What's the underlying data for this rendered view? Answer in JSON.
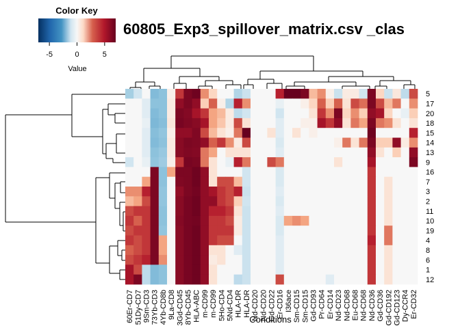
{
  "chart_data": {
    "type": "heatmap",
    "title": "60805_Exp3_spillover_matrix.csv _clas",
    "xlabel": "Conditions",
    "ylabel": "",
    "color_key": {
      "title": "Color Key",
      "label": "Value",
      "ticks": [
        -5,
        0,
        5
      ],
      "range": [
        -7,
        7
      ],
      "low_color": "#053061",
      "mid_color": "#f7f7f7",
      "high_color": "#67001f"
    },
    "row_labels": [
      "5",
      "17",
      "20",
      "18",
      "15",
      "14",
      "13",
      "9",
      "16",
      "7",
      "3",
      "2",
      "11",
      "10",
      "19",
      "4",
      "8",
      "6",
      "1",
      "12"
    ],
    "column_labels": [
      "60Er-CD7",
      "51Dy-CD7",
      "9Sm-CD3",
      "73Yb-CD3",
      "4Yb-CD8b",
      "9La-CD8",
      "3Gd-CD45",
      "8Yb-CD45",
      "HLA-ABC",
      "m-CD99",
      "m-CD99",
      "5Ho-CD4",
      "5Nd-CD4",
      "HLA-DR",
      "HLA-DR",
      "Nd-CD20",
      "Nd-CD20",
      "Gd-CD22",
      "Er-CD16",
      "I36ace",
      "Sm-CD15",
      "Sm-CD15",
      "Gd-CD93",
      "Pr-CD64",
      "Er-CD14",
      "Nd-CD23",
      "Nd-CD68",
      "Eu-CD68",
      "Nd-CD68",
      "Nd-CD36",
      "Gd-CD36",
      "Gd-CD192",
      "Gd-CD123",
      "Dy-CCR4",
      "Er-CD32"
    ],
    "values": [
      [
        -1.2,
        -0.5,
        0,
        -1.8,
        -1.6,
        0.2,
        4.5,
        6.5,
        6.8,
        2.5,
        0.8,
        0,
        0,
        -1,
        -0.6,
        0,
        0,
        0,
        5,
        7,
        7.5,
        6.5,
        1.5,
        2.5,
        0.2,
        -0.6,
        0.3,
        0.3,
        -0.5,
        6.5,
        0.8,
        -0.6,
        0.4,
        -0.8,
        4
      ],
      [
        0,
        0,
        -0.3,
        -1.6,
        -1.6,
        0.3,
        6,
        6.5,
        6,
        1,
        3.5,
        0.2,
        -1,
        5,
        2.5,
        0,
        0,
        0,
        -0.2,
        0,
        0,
        0.2,
        0.8,
        3.5,
        1,
        3.5,
        0.5,
        4,
        3.2,
        6.5,
        4,
        1.5,
        3,
        0,
        2.5
      ],
      [
        0,
        0,
        -0.3,
        -1.8,
        -1.6,
        0.3,
        6.5,
        6.3,
        5.5,
        4.5,
        2,
        1.5,
        0.3,
        -0.8,
        -0.5,
        0,
        0,
        0,
        -0.5,
        0,
        0,
        0,
        0.5,
        4.5,
        2.5,
        6.5,
        0.8,
        2.5,
        1,
        6,
        5.5,
        0.8,
        0,
        -0.2,
        1
      ],
      [
        0,
        0,
        -0.2,
        -1.9,
        -1.7,
        0.4,
        6.6,
        6.4,
        6.2,
        5.5,
        2,
        1.2,
        0.3,
        4,
        0.5,
        0,
        0,
        0,
        -0.3,
        0,
        0,
        0.2,
        0.2,
        5.5,
        4.5,
        6,
        0.5,
        3,
        2,
        6.5,
        3,
        2.5,
        0.5,
        0,
        0.5
      ],
      [
        0,
        0,
        -0.3,
        -1.7,
        -1.5,
        0.2,
        6,
        6,
        6.4,
        4,
        1.5,
        0.5,
        0.2,
        3,
        7.5,
        0,
        0,
        0.5,
        -0.3,
        0,
        0.5,
        0,
        0.2,
        0,
        0,
        0,
        0,
        0,
        0,
        6.8,
        0,
        0,
        0,
        0,
        5
      ],
      [
        0,
        0,
        -0.3,
        -1.8,
        -1.6,
        0.3,
        6.2,
        6.5,
        6.4,
        6,
        3.5,
        4.5,
        2.5,
        0.3,
        4,
        0,
        0,
        0,
        -0.4,
        0,
        0,
        0,
        0,
        0,
        0,
        0.2,
        3,
        0.5,
        3,
        6.5,
        1,
        1,
        6,
        0.3,
        2.5
      ],
      [
        0,
        0,
        -0.3,
        -1.6,
        -1.4,
        0.3,
        6.2,
        6.4,
        6.3,
        3,
        2,
        0,
        0.5,
        0.5,
        0.5,
        0,
        0,
        0,
        -0.3,
        0,
        0,
        0,
        0,
        0,
        0,
        0,
        0,
        0,
        0,
        6,
        0.5,
        0,
        1,
        0,
        6
      ],
      [
        -0.5,
        0,
        -0.2,
        -1.5,
        -1.3,
        0.2,
        4.5,
        6.6,
        6.5,
        3,
        0.5,
        0,
        -0.2,
        5,
        3,
        0,
        0,
        4,
        3,
        0,
        0,
        0,
        0,
        0,
        0,
        0.5,
        0,
        0,
        0,
        5.5,
        0,
        0,
        0,
        0,
        6.5
      ],
      [
        0,
        0,
        0,
        6.5,
        -1.6,
        2,
        6.5,
        6.5,
        6.8,
        6,
        0.5,
        0,
        0,
        0,
        -0.5,
        0,
        0,
        0,
        -0.4,
        0,
        0,
        0,
        0,
        0,
        0,
        0,
        0,
        0,
        0,
        4.5,
        0,
        0,
        0,
        0,
        0
      ],
      [
        0,
        0,
        2,
        6.5,
        -1.6,
        0,
        6.4,
        6.5,
        6.8,
        6,
        0.5,
        4,
        4,
        1.5,
        -0.5,
        0,
        0,
        0,
        -0.4,
        0,
        0,
        0,
        0,
        0,
        0,
        0,
        0,
        0,
        0,
        4.5,
        0,
        0.5,
        0,
        0,
        0
      ],
      [
        2.5,
        2.5,
        5,
        6.5,
        -1.5,
        0,
        6,
        6.5,
        6.7,
        6,
        5.5,
        4.5,
        4,
        5,
        -0.6,
        0,
        0,
        0,
        -0.3,
        0,
        0,
        0,
        0,
        0,
        0,
        0,
        0,
        0,
        0,
        4.5,
        0,
        0.5,
        0,
        0,
        0
      ],
      [
        1.5,
        2,
        4,
        6.5,
        -1.5,
        0,
        6.2,
        6.6,
        6.8,
        6,
        6,
        4.5,
        4,
        1,
        -0.5,
        0,
        0,
        0,
        -0.4,
        0,
        0,
        0,
        0,
        0,
        0,
        0,
        0,
        0,
        0,
        4.5,
        0,
        0.5,
        0,
        0,
        0
      ],
      [
        4,
        4.5,
        4.5,
        6.5,
        -1.6,
        0,
        6.2,
        6.6,
        6.8,
        6,
        5,
        5,
        4.5,
        0.5,
        -0.6,
        0,
        0,
        0,
        -0.3,
        0,
        0,
        0,
        0,
        0,
        0,
        0,
        0,
        0,
        0,
        4.5,
        0,
        0.5,
        0,
        0,
        0
      ],
      [
        4.5,
        3.5,
        4.5,
        6.5,
        -1.6,
        0,
        6.3,
        6.6,
        6.7,
        6,
        4.5,
        4.5,
        4,
        0.3,
        -0.6,
        0,
        0,
        0,
        -0.4,
        2,
        2.5,
        2,
        0,
        0,
        0,
        0,
        0,
        0,
        0,
        4.5,
        0,
        0.5,
        0,
        0,
        0
      ],
      [
        4,
        4.5,
        4.5,
        6.5,
        -1.5,
        0,
        6.2,
        6.6,
        6.8,
        6,
        4.5,
        4.5,
        4.5,
        0.3,
        -0.6,
        0,
        0,
        0,
        -0.4,
        0,
        0,
        0,
        0,
        0,
        0,
        0,
        0,
        0,
        0,
        4.5,
        0,
        3,
        0,
        0,
        0
      ],
      [
        4.5,
        4,
        4.5,
        6.5,
        2,
        0,
        6.2,
        6.6,
        6.8,
        6,
        4.5,
        4,
        4,
        0,
        -0.6,
        0,
        0,
        0,
        -0.3,
        0,
        0,
        0,
        0,
        0,
        0,
        0,
        0,
        0,
        0,
        5,
        0,
        3,
        0,
        0,
        0
      ],
      [
        3.5,
        4,
        4.5,
        6.5,
        2,
        0,
        6.2,
        6.6,
        6.8,
        6,
        0.5,
        0.5,
        0,
        -0.3,
        -0.6,
        0,
        0,
        0,
        -0.3,
        0,
        0,
        0,
        0,
        0,
        0,
        0,
        0,
        0,
        0,
        4.5,
        0,
        0.5,
        0,
        0,
        0
      ],
      [
        4,
        4.5,
        5,
        6.5,
        2.5,
        0,
        6.2,
        6.6,
        6.8,
        6,
        0.3,
        0.5,
        0,
        0,
        -0.6,
        0,
        0,
        0,
        -0.3,
        0,
        0,
        0,
        0,
        0,
        0,
        0,
        0,
        0,
        0,
        4.5,
        0,
        0.5,
        0,
        0,
        0
      ],
      [
        5.5,
        4,
        -0.8,
        -1.8,
        -1.6,
        0,
        6.2,
        6.6,
        6.8,
        6,
        0.5,
        0,
        0,
        0,
        -0.6,
        0,
        0,
        0,
        -0.3,
        0,
        0,
        0,
        0,
        0,
        0,
        0,
        0,
        0,
        0,
        4.5,
        0,
        0.5,
        0,
        0,
        0
      ],
      [
        5.5,
        6.5,
        -0.8,
        -1.8,
        -1.6,
        0,
        6.2,
        6.6,
        6.8,
        6,
        0.5,
        0,
        0,
        -0.8,
        -0.6,
        0,
        0,
        0,
        4,
        0,
        0,
        0,
        0,
        0,
        -0.3,
        0,
        0,
        0,
        0,
        4.5,
        0,
        0.5,
        0,
        0,
        0
      ]
    ]
  }
}
